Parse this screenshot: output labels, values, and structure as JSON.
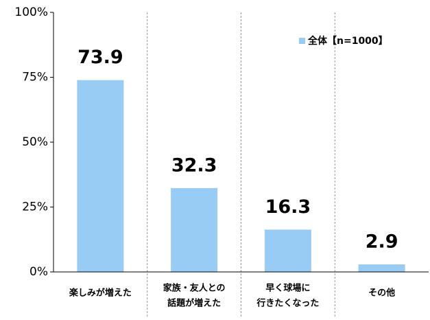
{
  "chart_data": {
    "type": "bar",
    "categories": [
      [
        "楽しみが増えた"
      ],
      [
        "家族・友人との",
        "話題が増えた"
      ],
      [
        "早く球場に",
        "行きたくなった"
      ],
      [
        "その他"
      ]
    ],
    "series": [
      {
        "name": "全体【n=1000】",
        "color": "#99ccf5",
        "values": [
          73.9,
          32.3,
          16.3,
          2.9
        ]
      }
    ],
    "ylim": [
      0,
      100
    ],
    "yticks": [
      {
        "value": 0,
        "label": "0%"
      },
      {
        "value": 25,
        "label": "25%"
      },
      {
        "value": 50,
        "label": "50%"
      },
      {
        "value": 75,
        "label": "75%"
      },
      {
        "value": 100,
        "label": "100%"
      }
    ],
    "legend": "top-right"
  }
}
